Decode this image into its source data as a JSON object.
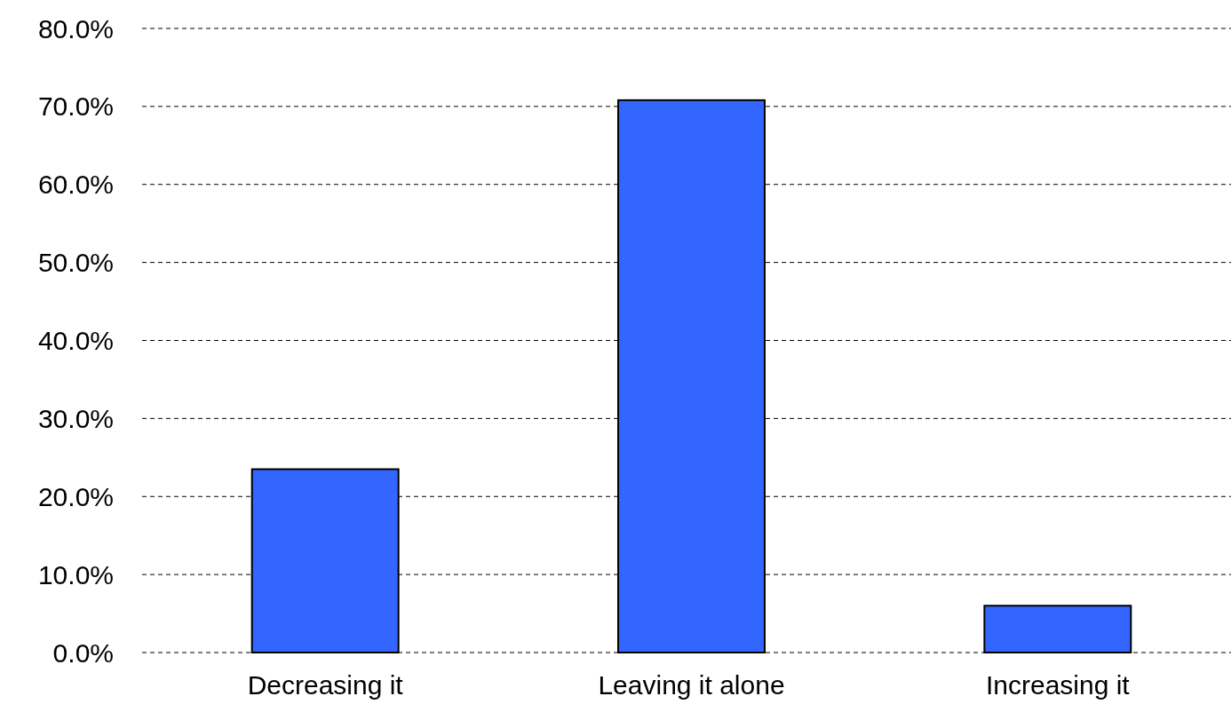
{
  "chart_data": {
    "type": "bar",
    "categories": [
      "Decreasing it",
      "Leaving it alone",
      "Increasing it"
    ],
    "values": [
      23.5,
      70.8,
      6.0
    ],
    "color": "#3366ff",
    "ylim": [
      0,
      80
    ],
    "yticks": [
      {
        "value": 0,
        "label": "0.0%"
      },
      {
        "value": 10,
        "label": "10.0%"
      },
      {
        "value": 20,
        "label": "20.0%"
      },
      {
        "value": 30,
        "label": "30.0%"
      },
      {
        "value": 40,
        "label": "40.0%"
      },
      {
        "value": 50,
        "label": "50.0%"
      },
      {
        "value": 60,
        "label": "60.0%"
      },
      {
        "value": 70,
        "label": "70.0%"
      },
      {
        "value": 80,
        "label": "80.0%"
      }
    ],
    "grid": "y"
  }
}
